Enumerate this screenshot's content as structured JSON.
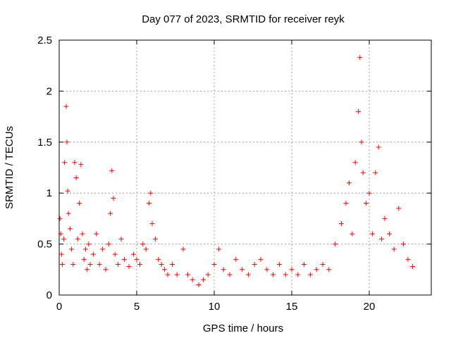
{
  "chart_data": {
    "type": "scatter",
    "title": "Day 077 of 2023, SRMTID for receiver reyk",
    "xlabel": "GPS time / hours",
    "ylabel": "SRMTID / TECUs",
    "xlim": [
      0,
      24
    ],
    "ylim": [
      0,
      2.5
    ],
    "xticks": [
      "0",
      "5",
      "10",
      "15",
      "20"
    ],
    "yticks": [
      "0",
      "0.5",
      "1",
      "1.5",
      "2",
      "2.5"
    ],
    "grid": true,
    "marker": "plus",
    "color": "#ff0000",
    "series": [
      {
        "name": "SRMTID",
        "points": [
          [
            0.05,
            0.75
          ],
          [
            0.1,
            0.6
          ],
          [
            0.15,
            0.4
          ],
          [
            0.2,
            0.3
          ],
          [
            0.3,
            0.55
          ],
          [
            0.35,
            1.3
          ],
          [
            0.45,
            1.85
          ],
          [
            0.5,
            1.5
          ],
          [
            0.55,
            1.02
          ],
          [
            0.6,
            0.8
          ],
          [
            0.7,
            0.65
          ],
          [
            0.8,
            0.45
          ],
          [
            0.9,
            0.3
          ],
          [
            1.0,
            1.3
          ],
          [
            1.1,
            1.15
          ],
          [
            1.2,
            0.55
          ],
          [
            1.3,
            0.9
          ],
          [
            1.4,
            1.28
          ],
          [
            1.5,
            0.6
          ],
          [
            1.6,
            0.35
          ],
          [
            1.7,
            0.45
          ],
          [
            1.8,
            0.25
          ],
          [
            1.9,
            0.5
          ],
          [
            2.0,
            0.3
          ],
          [
            2.2,
            0.4
          ],
          [
            2.4,
            0.6
          ],
          [
            2.6,
            0.3
          ],
          [
            2.8,
            0.45
          ],
          [
            3.0,
            0.25
          ],
          [
            3.2,
            0.5
          ],
          [
            3.3,
            0.8
          ],
          [
            3.4,
            1.22
          ],
          [
            3.5,
            0.95
          ],
          [
            3.6,
            0.4
          ],
          [
            3.8,
            0.3
          ],
          [
            4.0,
            0.55
          ],
          [
            4.2,
            0.35
          ],
          [
            4.5,
            0.28
          ],
          [
            4.8,
            0.4
          ],
          [
            5.0,
            0.35
          ],
          [
            5.2,
            0.3
          ],
          [
            5.4,
            0.5
          ],
          [
            5.6,
            0.45
          ],
          [
            5.8,
            0.9
          ],
          [
            5.9,
            1.0
          ],
          [
            6.0,
            0.7
          ],
          [
            6.2,
            0.55
          ],
          [
            6.4,
            0.35
          ],
          [
            6.6,
            0.3
          ],
          [
            6.8,
            0.25
          ],
          [
            7.0,
            0.2
          ],
          [
            7.3,
            0.3
          ],
          [
            7.6,
            0.2
          ],
          [
            8.0,
            0.45
          ],
          [
            8.3,
            0.2
          ],
          [
            8.6,
            0.15
          ],
          [
            9.0,
            0.1
          ],
          [
            9.3,
            0.15
          ],
          [
            9.6,
            0.2
          ],
          [
            10.0,
            0.3
          ],
          [
            10.3,
            0.45
          ],
          [
            10.6,
            0.25
          ],
          [
            11.0,
            0.2
          ],
          [
            11.4,
            0.35
          ],
          [
            11.8,
            0.25
          ],
          [
            12.2,
            0.2
          ],
          [
            12.6,
            0.3
          ],
          [
            13.0,
            0.35
          ],
          [
            13.4,
            0.25
          ],
          [
            13.8,
            0.2
          ],
          [
            14.2,
            0.3
          ],
          [
            14.6,
            0.2
          ],
          [
            15.0,
            0.25
          ],
          [
            15.4,
            0.2
          ],
          [
            15.8,
            0.3
          ],
          [
            16.2,
            0.2
          ],
          [
            16.6,
            0.25
          ],
          [
            17.0,
            0.3
          ],
          [
            17.4,
            0.25
          ],
          [
            17.8,
            0.5
          ],
          [
            18.2,
            0.7
          ],
          [
            18.5,
            0.9
          ],
          [
            18.7,
            1.1
          ],
          [
            18.9,
            0.6
          ],
          [
            19.1,
            1.3
          ],
          [
            19.3,
            1.8
          ],
          [
            19.4,
            2.33
          ],
          [
            19.5,
            1.5
          ],
          [
            19.6,
            1.2
          ],
          [
            19.8,
            0.9
          ],
          [
            20.0,
            1.0
          ],
          [
            20.2,
            0.6
          ],
          [
            20.4,
            1.2
          ],
          [
            20.6,
            1.45
          ],
          [
            20.8,
            0.55
          ],
          [
            21.0,
            0.75
          ],
          [
            21.3,
            0.6
          ],
          [
            21.6,
            0.45
          ],
          [
            21.9,
            0.85
          ],
          [
            22.2,
            0.5
          ],
          [
            22.5,
            0.35
          ],
          [
            22.8,
            0.28
          ]
        ]
      }
    ]
  }
}
